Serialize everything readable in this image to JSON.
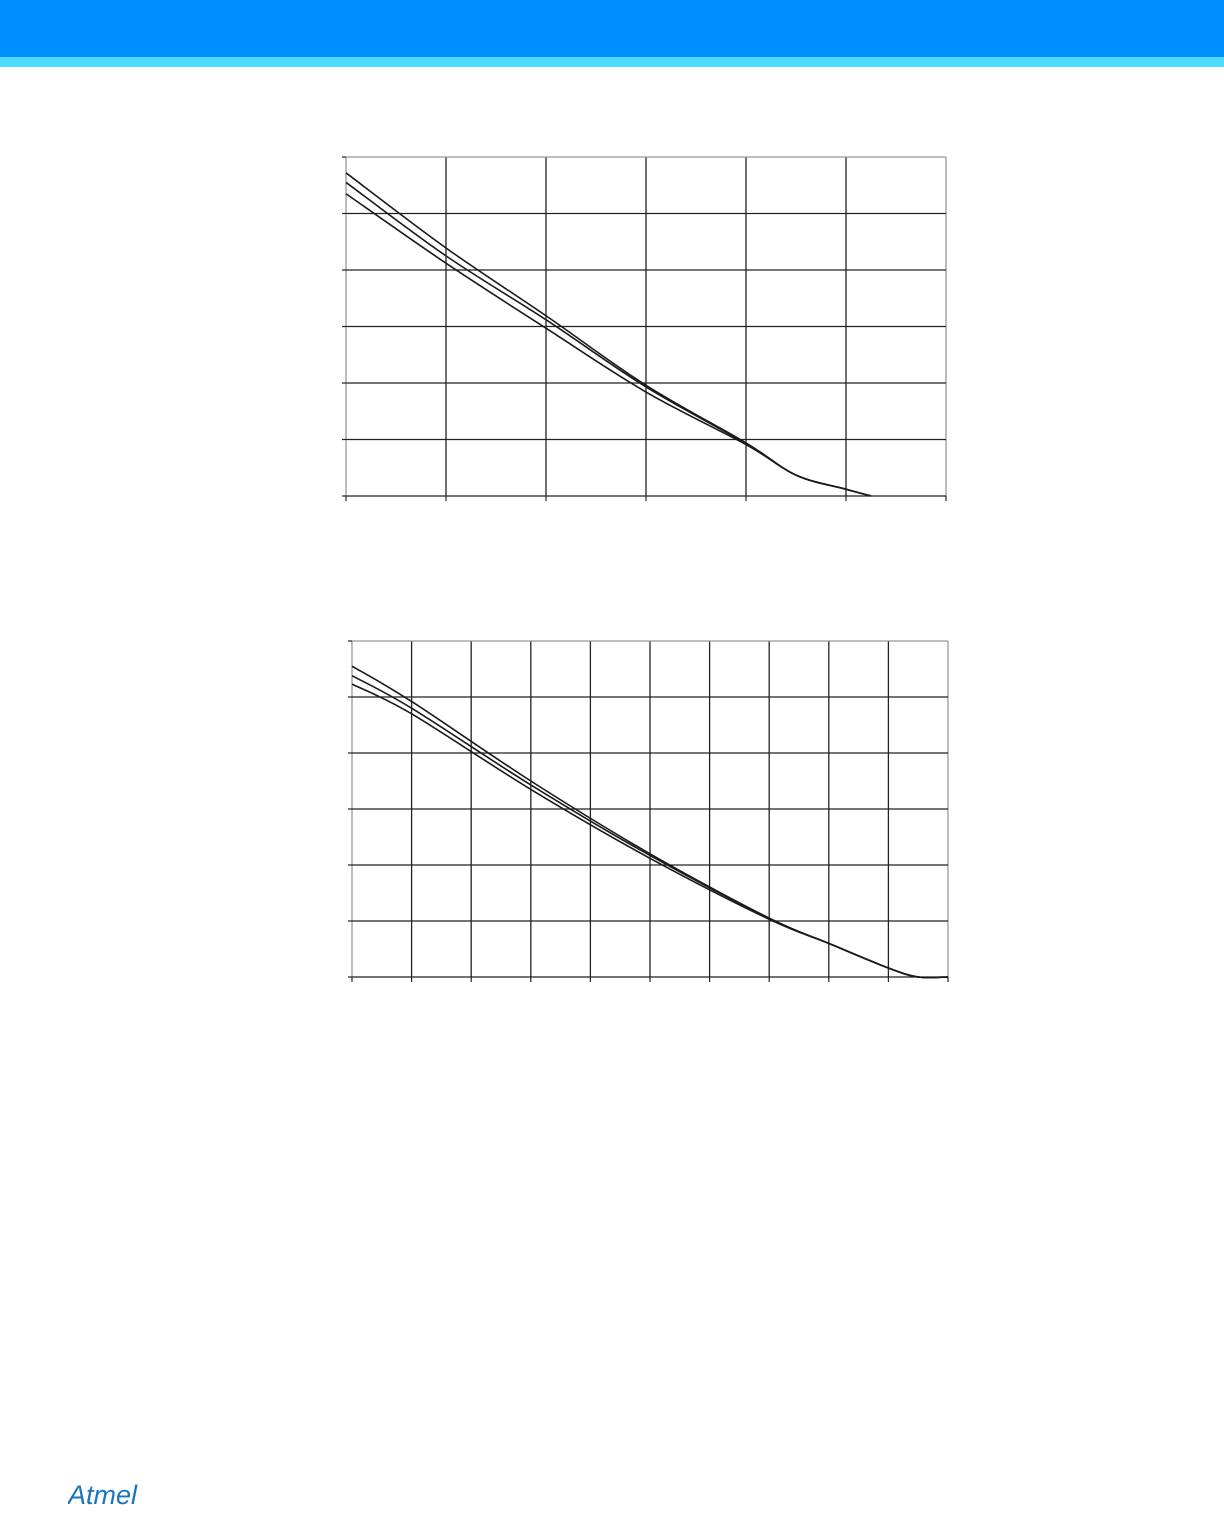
{
  "brand": {
    "logo_text": "Atmel",
    "header_color": "#008fff",
    "header_stripe_color": "#4fdcff",
    "logo_color": "#1a75bc"
  },
  "chart_data": [
    {
      "type": "line",
      "title": "",
      "xlabel": "",
      "ylabel": "",
      "xlim": [
        0,
        6
      ],
      "ylim": [
        0,
        6
      ],
      "grid": true,
      "series": [
        {
          "x": [
            0,
            1,
            2,
            3,
            4,
            4.5,
            5,
            5.25
          ],
          "y": [
            5.72,
            4.39,
            3.19,
            1.96,
            0.94,
            0.37,
            0.12,
            0
          ]
        },
        {
          "x": [
            0,
            1,
            2,
            3,
            4,
            4.5,
            5,
            5.25
          ],
          "y": [
            5.55,
            4.25,
            3.12,
            1.93,
            0.93,
            0.37,
            0.12,
            0
          ]
        },
        {
          "x": [
            0,
            1,
            2,
            3,
            4,
            4.5,
            5,
            5.25
          ],
          "y": [
            5.35,
            4.12,
            2.97,
            1.84,
            0.91,
            0.37,
            0.12,
            0
          ]
        }
      ]
    },
    {
      "type": "line",
      "title": "",
      "xlabel": "",
      "ylabel": "",
      "xlim": [
        0,
        10
      ],
      "ylim": [
        0,
        6
      ],
      "grid": true,
      "series": [
        {
          "x": [
            0,
            1,
            3,
            5,
            7,
            8,
            9,
            9.5,
            10
          ],
          "y": [
            5.55,
            4.92,
            3.5,
            2.2,
            1.05,
            0.6,
            0.16,
            0,
            0
          ]
        },
        {
          "x": [
            0,
            1,
            3,
            5,
            7,
            8,
            9,
            9.5,
            10
          ],
          "y": [
            5.38,
            4.8,
            3.43,
            2.17,
            1.05,
            0.6,
            0.16,
            0,
            0
          ]
        },
        {
          "x": [
            0,
            1,
            3,
            5,
            7,
            8,
            9,
            9.5,
            10
          ],
          "y": [
            5.23,
            4.7,
            3.35,
            2.12,
            1.03,
            0.6,
            0.16,
            0,
            0
          ]
        }
      ]
    }
  ]
}
